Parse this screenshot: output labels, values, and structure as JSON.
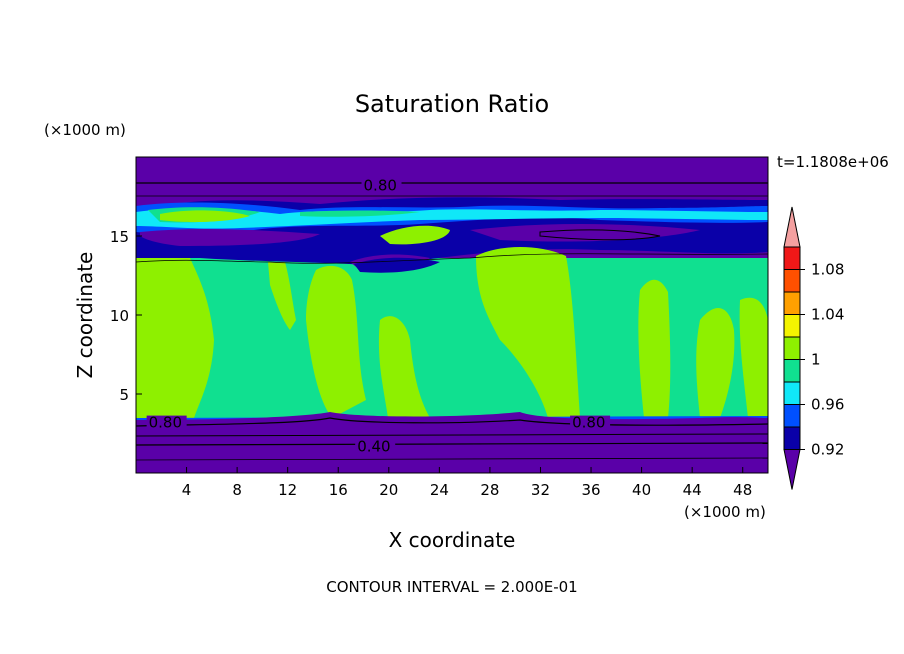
{
  "chart_data": {
    "type": "heatmap",
    "title": "Saturation Ratio",
    "xlabel": "X coordinate",
    "ylabel": "Z coordinate",
    "x_unit": "(×1000 m)",
    "y_unit": "(×1000 m)",
    "time_label": "t=1.1808e+06",
    "footer": "CONTOUR INTERVAL = 2.000E-01",
    "xlim": [
      0,
      50
    ],
    "ylim": [
      0,
      20
    ],
    "x_ticks": [
      4,
      8,
      12,
      16,
      20,
      24,
      28,
      32,
      36,
      40,
      44,
      48
    ],
    "y_ticks": [
      5,
      10,
      15
    ],
    "colorbar": {
      "levels": [
        0.92,
        0.94,
        0.96,
        0.98,
        1.0,
        1.02,
        1.04,
        1.06,
        1.08,
        1.1
      ],
      "tick_labels": [
        "0.92",
        "0.96",
        "1",
        "1.04",
        "1.08"
      ],
      "colors": [
        "#5a00a8",
        "#0a00a8",
        "#0050ff",
        "#10e8f8",
        "#10e090",
        "#8ef000",
        "#f4f400",
        "#ffa000",
        "#ff5000",
        "#f01818",
        "#f4a0a0"
      ]
    },
    "contour_labels": [
      {
        "value": "0.80",
        "x": 18,
        "z": 18
      },
      {
        "value": "0.80",
        "x": 1,
        "z": 3
      },
      {
        "value": "0.80",
        "x": 34.5,
        "z": 3
      },
      {
        "value": "0.40",
        "x": 17.5,
        "z": 1.5
      }
    ],
    "regions": [
      {
        "band": "top",
        "z": [
          17.5,
          20
        ],
        "value": "<0.92"
      },
      {
        "band": "upper-cloud",
        "z": [
          13.5,
          17.5
        ],
        "value": "0.92-0.98"
      },
      {
        "band": "middle",
        "z": [
          3.3,
          13.5
        ],
        "value": "0.98-1.02"
      },
      {
        "band": "bottom",
        "z": [
          0,
          3.3
        ],
        "value": "<0.92"
      }
    ]
  }
}
